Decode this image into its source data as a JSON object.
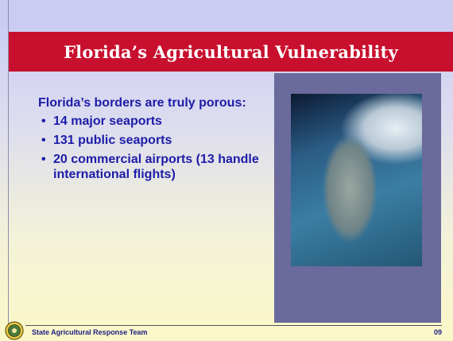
{
  "slide": {
    "title": "Florida’s Agricultural Vulnerability",
    "intro": "Florida’s borders are truly porous:",
    "bullets": [
      "14 major seaports",
      "131 public seaports",
      "20 commercial airports (13 handle international flights)"
    ],
    "footer": {
      "organization": "State Agricultural Response Team",
      "page": "09"
    }
  }
}
